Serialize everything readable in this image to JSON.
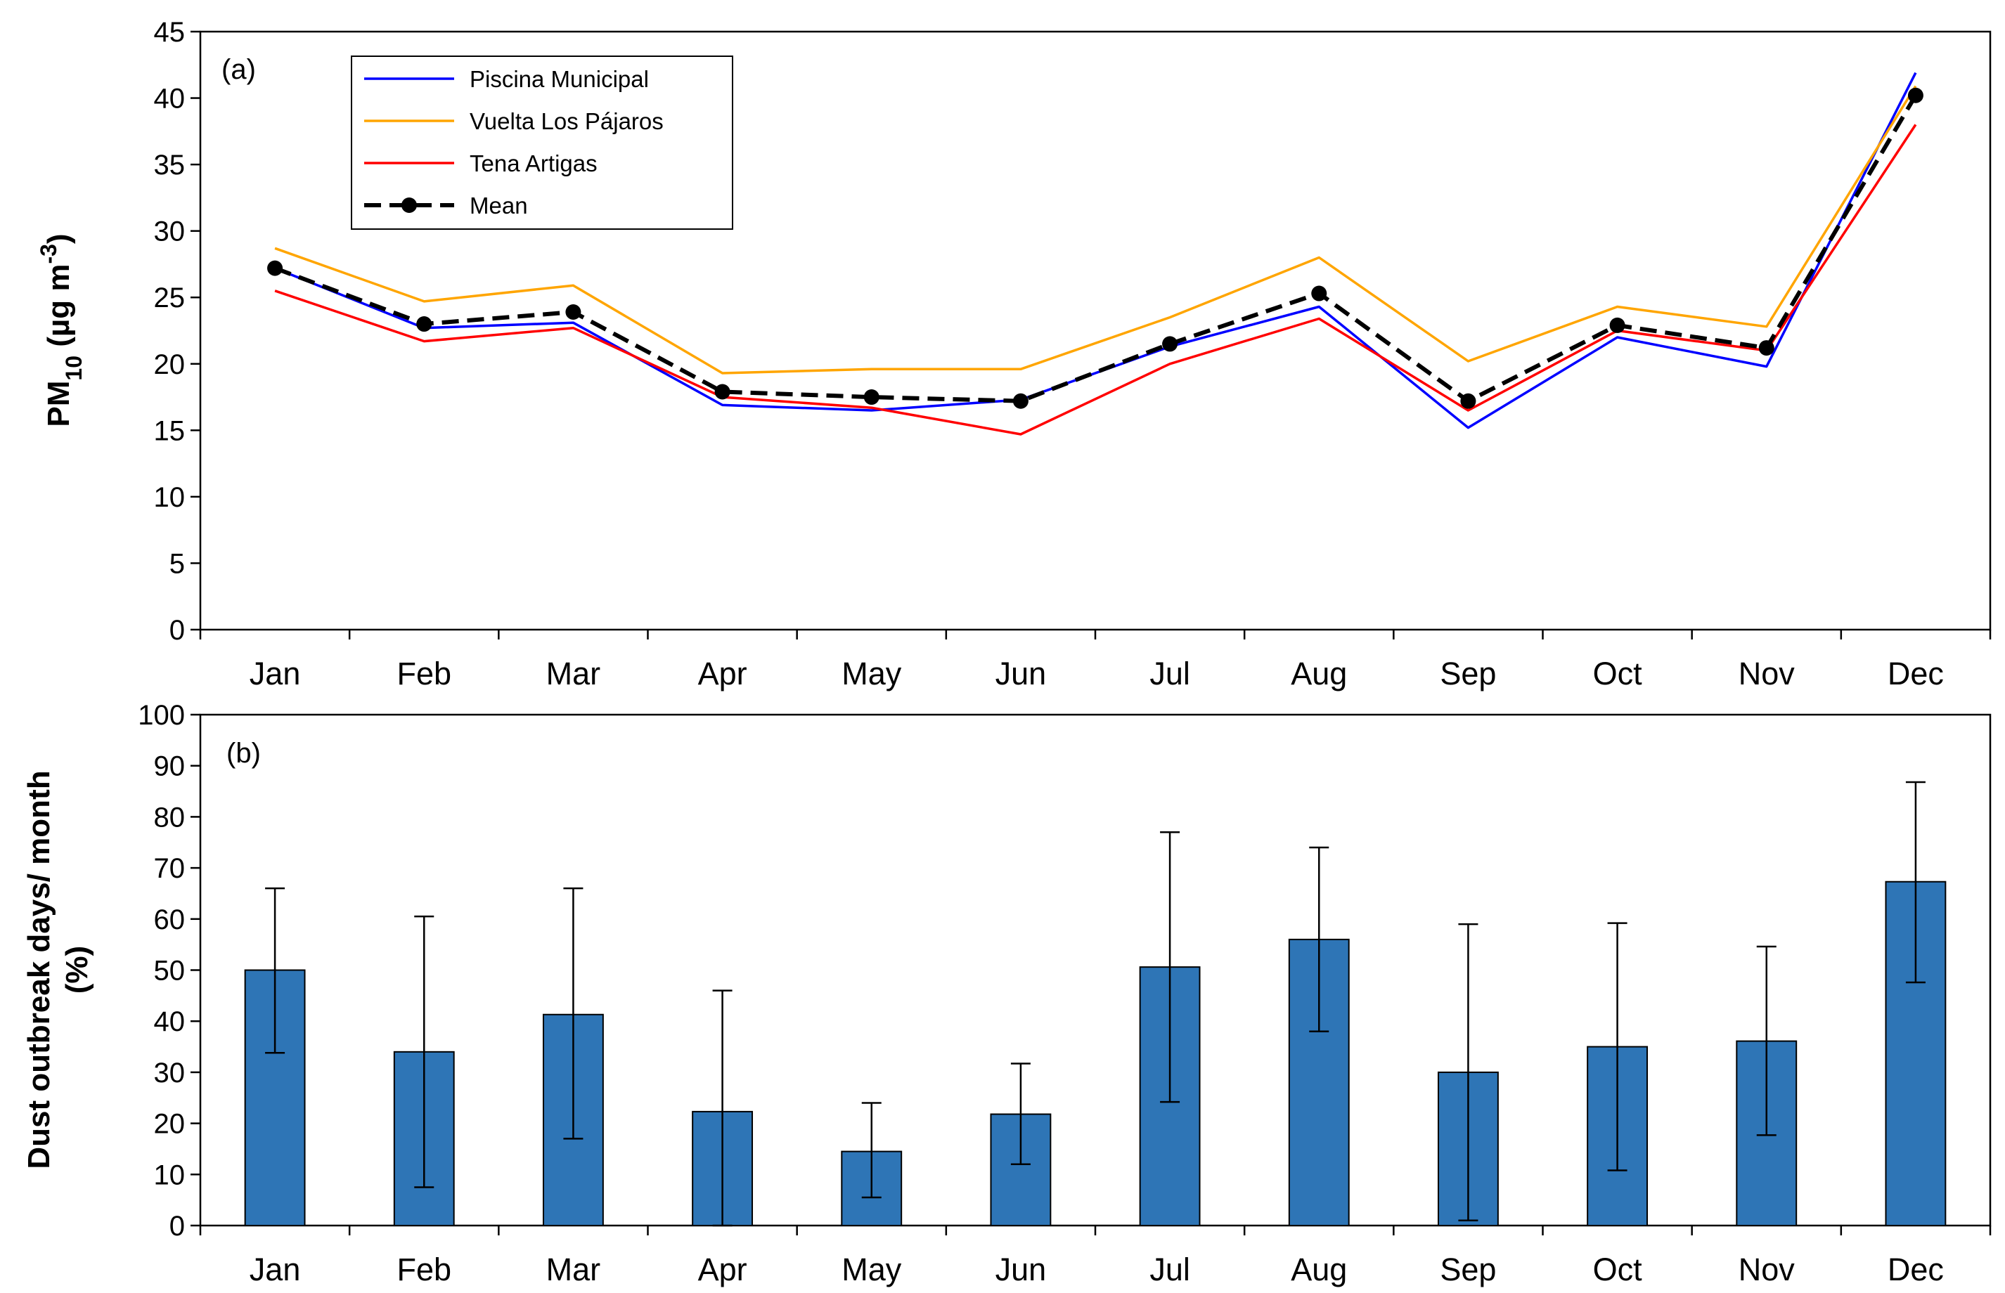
{
  "chart_data": [
    {
      "panel": "(a)",
      "type": "line",
      "ylabel_main": "PM",
      "ylabel_sub": "10",
      "ylabel_unit_open": " (µg m",
      "ylabel_unit_sup": "-3",
      "ylabel_unit_close": ")",
      "xlabel": "",
      "ylim": [
        0,
        45
      ],
      "yticks": [
        "0",
        "5",
        "10",
        "15",
        "20",
        "25",
        "30",
        "35",
        "40",
        "45"
      ],
      "categories": [
        "Jan",
        "Feb",
        "Mar",
        "Apr",
        "May",
        "Jun",
        "Jul",
        "Aug",
        "Sep",
        "Oct",
        "Nov",
        "Dec"
      ],
      "legend_position": "top-left",
      "series": [
        {
          "name": "Piscina Municipal",
          "color": "#0000ff",
          "style": "solid",
          "values": [
            27.2,
            22.7,
            23.1,
            16.9,
            16.5,
            17.3,
            21.3,
            24.3,
            15.2,
            22.0,
            19.8,
            41.9
          ]
        },
        {
          "name": "Vuelta Los Pájaros",
          "color": "#ffa500",
          "style": "solid",
          "values": [
            28.7,
            24.7,
            25.9,
            19.3,
            19.6,
            19.6,
            23.5,
            28.0,
            20.2,
            24.3,
            22.8,
            40.9
          ]
        },
        {
          "name": "Tena Artigas",
          "color": "#ff0000",
          "style": "solid",
          "values": [
            25.5,
            21.7,
            22.7,
            17.5,
            16.7,
            14.7,
            20.0,
            23.4,
            16.5,
            22.5,
            21.0,
            38.0
          ]
        },
        {
          "name": "Mean",
          "color": "#000000",
          "style": "dashed-markers",
          "values": [
            27.2,
            23.0,
            23.9,
            17.9,
            17.5,
            17.2,
            21.5,
            25.3,
            17.2,
            22.9,
            21.2,
            40.2
          ]
        }
      ]
    },
    {
      "panel": "(b)",
      "type": "bar",
      "ylabel_line1": "Dust outbreak days/ month",
      "ylabel_line2": "(%)",
      "xlabel": "",
      "ylim": [
        0,
        100
      ],
      "yticks": [
        "0",
        "10",
        "20",
        "30",
        "40",
        "50",
        "60",
        "70",
        "80",
        "90",
        "100"
      ],
      "categories": [
        "Jan",
        "Feb",
        "Mar",
        "Apr",
        "May",
        "Jun",
        "Jul",
        "Aug",
        "Sep",
        "Oct",
        "Nov",
        "Dec"
      ],
      "bar_color": "#2e75b6",
      "values": [
        50,
        34,
        41.3,
        22.3,
        14.5,
        21.8,
        50.6,
        56,
        30,
        35,
        36.1,
        67.3
      ],
      "error_low": [
        33.8,
        7.5,
        17,
        0,
        5.5,
        12,
        24.2,
        38,
        1,
        10.8,
        17.7,
        47.6
      ],
      "error_high": [
        66,
        60.5,
        66,
        46,
        24,
        31.7,
        77,
        74,
        59,
        59.2,
        54.6,
        86.8
      ]
    }
  ]
}
